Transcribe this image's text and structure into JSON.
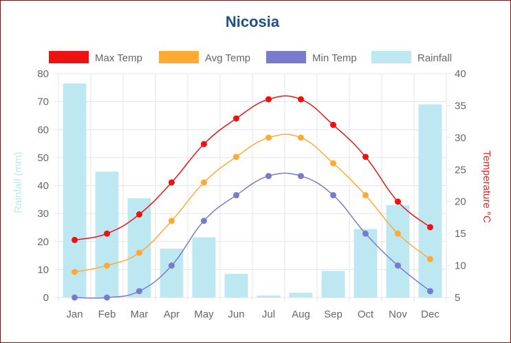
{
  "chart_data": {
    "type": "bar",
    "title": "Nicosia",
    "categories": [
      "Jan",
      "Feb",
      "Mar",
      "Apr",
      "May",
      "Jun",
      "Jul",
      "Aug",
      "Sep",
      "Oct",
      "Nov",
      "Dec"
    ],
    "legend_position": "top",
    "grid": true,
    "y_left": {
      "label": "Rainfall (mm)",
      "range": [
        0,
        80
      ],
      "ticks": [
        "0",
        "10",
        "20",
        "30",
        "40",
        "50",
        "60",
        "70",
        "80"
      ]
    },
    "y_right": {
      "label": "Temperature °C",
      "range": [
        5,
        40
      ],
      "ticks": [
        "5",
        "10",
        "15",
        "20",
        "25",
        "30",
        "35",
        "40"
      ]
    },
    "series": [
      {
        "name": "Max Temp",
        "type": "line",
        "axis": "right",
        "color": "#ee1111",
        "values": [
          14,
          15,
          18,
          23,
          29,
          33,
          36,
          36,
          32,
          27,
          20,
          16
        ]
      },
      {
        "name": "Avg Temp",
        "type": "line",
        "axis": "right",
        "color": "#ffaa33",
        "values": [
          9,
          10,
          12,
          17,
          23,
          27,
          30,
          30,
          26,
          21,
          15,
          11
        ]
      },
      {
        "name": "Min Temp",
        "type": "line",
        "axis": "right",
        "color": "#7a7acc",
        "values": [
          5,
          5,
          6,
          10,
          17,
          21,
          24,
          24,
          21,
          15,
          10,
          6
        ]
      },
      {
        "name": "Rainfall",
        "type": "bar",
        "axis": "left",
        "color": "#bde8f2",
        "values": [
          76.5,
          45,
          35.5,
          17.5,
          21.5,
          8.5,
          0.7,
          1.7,
          9.5,
          24.5,
          33,
          69
        ]
      }
    ]
  }
}
